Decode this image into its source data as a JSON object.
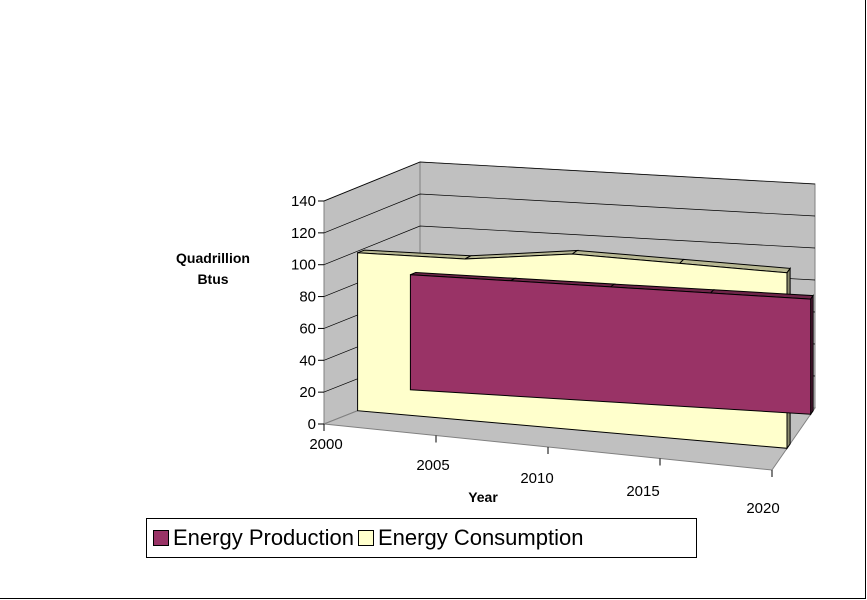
{
  "chart_data": {
    "type": "area",
    "title": "",
    "xlabel": "Year",
    "ylabel": "Quadrillion Btus",
    "ylim": [
      0,
      140
    ],
    "yticks": [
      "0",
      "20",
      "40",
      "60",
      "80",
      "100",
      "120",
      "140"
    ],
    "x_tick_labels": [
      "2000",
      "2005",
      "2010",
      "2015",
      "2020"
    ],
    "x": [
      2000,
      2005,
      2010,
      2015,
      2020
    ],
    "series": [
      {
        "name": "Energy Production",
        "values": [
          72,
          72,
          72,
          72,
          72
        ],
        "color": "#993366"
      },
      {
        "name": "Energy Consumption",
        "values": [
          99,
          101,
          110,
          110,
          110
        ],
        "color": "#FFFFCC"
      }
    ],
    "view": "3d",
    "grid": true,
    "legend_position": "bottom"
  }
}
